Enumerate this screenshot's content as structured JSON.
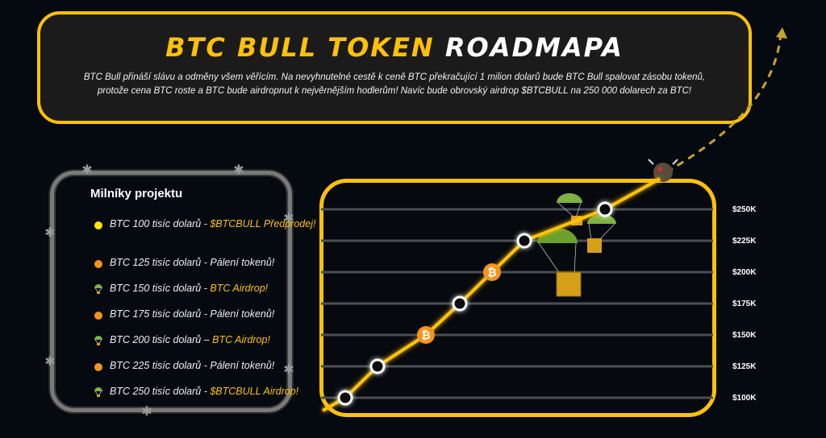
{
  "header": {
    "title_part1": "BTC BULL TOKEN",
    "title_part2": "ROADMAPA",
    "intro": "BTC Bull přináší slávu a odměny všem věřícím. Na nevyhnutelné cestě k ceně BTC překračující 1 milion dolarů bude BTC Bull spalovat zásobu tokenů, protože cena BTC roste a BTC bude airdropnut k nejvěrnějším hodlerům! Navíc bude obrovský airdrop $BTCBULL na 250 000 dolarech za BTC!"
  },
  "milestones": {
    "title": "Milníky projektu",
    "items": [
      {
        "text": "BTC 100 tisíc dolarů - ",
        "highlight": "$BTCBULL Předprodej!",
        "marker": "yellow-dot"
      },
      {
        "text": "BTC 125 tisíc dolarů -  Pálení tokenů!",
        "highlight": "",
        "marker": "orange-dot"
      },
      {
        "text": "BTC 150 tisíc dolarů - ",
        "highlight": "BTC Airdrop!",
        "marker": "parachute-icon"
      },
      {
        "text": "BTC 175 tisíc dolarů - Pálení tokenů!",
        "highlight": "",
        "marker": "orange-dot"
      },
      {
        "text": "BTC 200 tisíc dolarů – ",
        "highlight": "BTC Airdrop!",
        "marker": "parachute-icon"
      },
      {
        "text": "BTC 225 tisíc dolarů - Pálení tokenů!",
        "highlight": "",
        "marker": "orange-dot"
      },
      {
        "text": "BTC 250 tisíc dolarů - ",
        "highlight": "$BTCBULL Airdrop!",
        "marker": "parachute-icon"
      }
    ]
  },
  "chart_data": {
    "type": "line",
    "y_tick_labels": [
      "$250K",
      "$225K",
      "$200K",
      "$175K",
      "$150K",
      "$125K",
      "$100K"
    ],
    "y_ticks": [
      250,
      225,
      200,
      175,
      150,
      125,
      100
    ],
    "ylim": [
      100,
      250
    ],
    "points": [
      {
        "y": 100,
        "marker": "ring"
      },
      {
        "y": 125,
        "marker": "ring"
      },
      {
        "y": 150,
        "marker": "bitcoin"
      },
      {
        "y": 175,
        "marker": "ring"
      },
      {
        "y": 200,
        "marker": "bitcoin"
      },
      {
        "y": 225,
        "marker": "ring"
      },
      {
        "y": 250,
        "marker": "ring"
      }
    ],
    "line_color": "#ffc107",
    "grid": true
  },
  "colors": {
    "accent": "#ffc107",
    "orange": "#f7931a",
    "background": "#050a10"
  }
}
